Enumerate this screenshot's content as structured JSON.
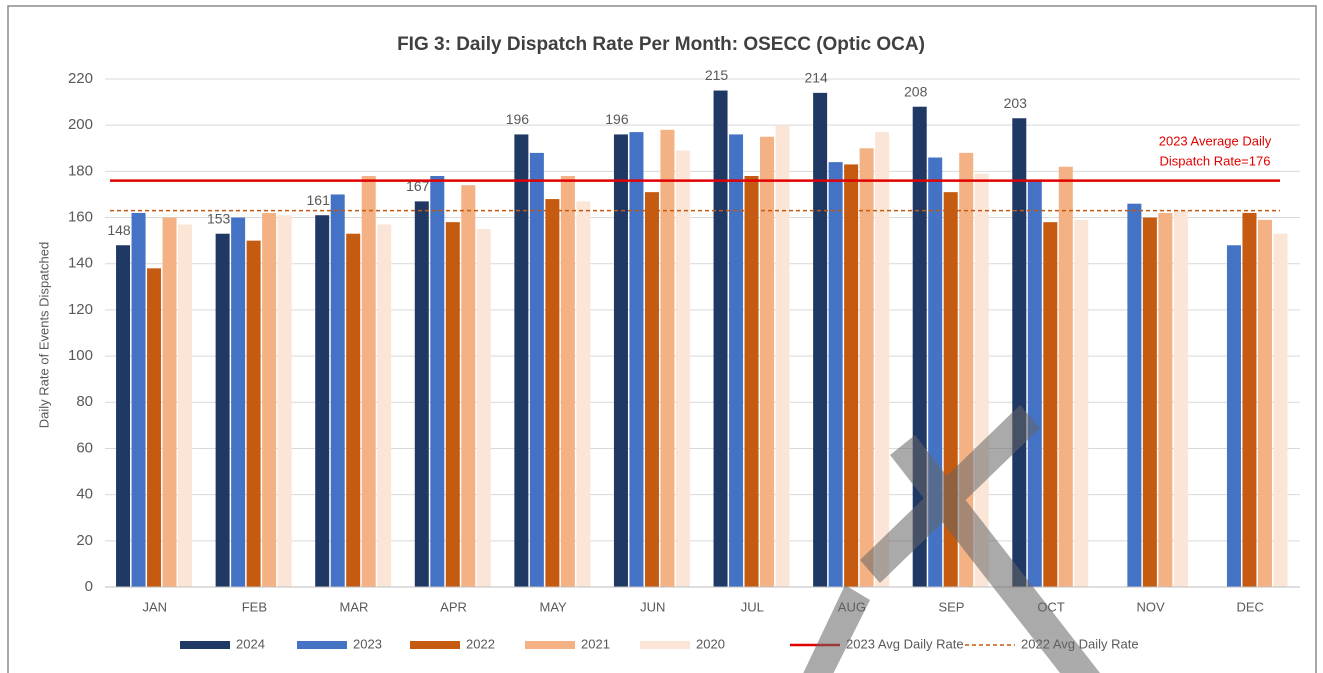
{
  "chart_data": {
    "type": "bar",
    "title": "FIG 3: Daily Dispatch Rate Per Month: OSECC (Optic OCA)",
    "y_label": "Daily Rate of Events Dispatched",
    "categories": [
      "JAN",
      "FEB",
      "MAR",
      "APR",
      "MAY",
      "JUN",
      "JUL",
      "AUG",
      "SEP",
      "OCT",
      "NOV",
      "DEC"
    ],
    "series": [
      {
        "name": "2024",
        "color": "#203864",
        "data_labels": true,
        "values": [
          148,
          153,
          161,
          167,
          196,
          196,
          215,
          214,
          208,
          203,
          null,
          null
        ]
      },
      {
        "name": "2023",
        "color": "#4472c4",
        "values": [
          162,
          160,
          170,
          178,
          188,
          197,
          196,
          184,
          186,
          176,
          166,
          148
        ]
      },
      {
        "name": "2022",
        "color": "#c55a11",
        "values": [
          138,
          150,
          153,
          158,
          168,
          171,
          178,
          183,
          171,
          158,
          160,
          162
        ]
      },
      {
        "name": "2021",
        "color": "#f4b183",
        "values": [
          160,
          162,
          178,
          174,
          178,
          198,
          195,
          190,
          188,
          182,
          162,
          159
        ]
      },
      {
        "name": "2020",
        "color": "#fbe5d6",
        "values": [
          157,
          161,
          157,
          155,
          167,
          189,
          200,
          197,
          179,
          159,
          163,
          153
        ]
      }
    ],
    "reference_lines": [
      {
        "name": "2023 Avg Daily Rate",
        "value": 176,
        "color": "#e00000",
        "style": "solid"
      },
      {
        "name": "2022 Avg Daily Rate",
        "value": 163,
        "color": "#c55a11",
        "style": "dashed"
      }
    ],
    "annotation": {
      "lines": [
        "2023 Average Daily",
        "Dispatch Rate=176"
      ],
      "color": "#e00000"
    },
    "ylim": [
      0,
      220
    ],
    "yticks": [
      0,
      20,
      40,
      60,
      80,
      100,
      120,
      140,
      160,
      180,
      200,
      220
    ],
    "grid": true,
    "legend": "bottom"
  }
}
